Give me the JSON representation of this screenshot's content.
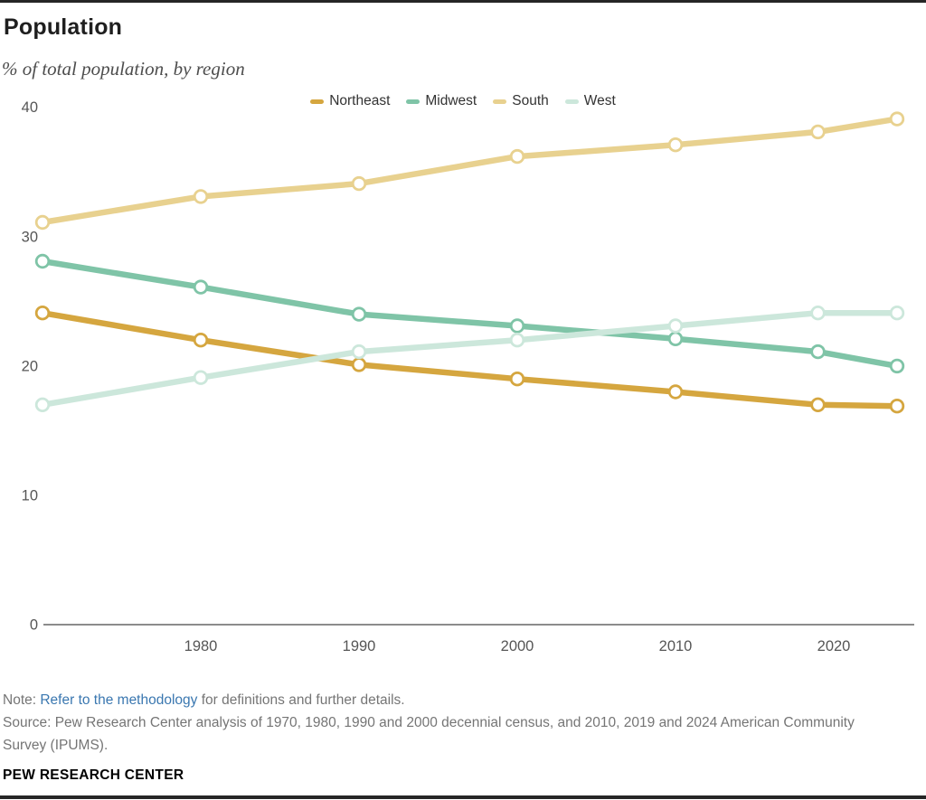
{
  "header": {
    "title": "Population",
    "subtitle": "% of total population, by region"
  },
  "chart_data": {
    "type": "line",
    "x": [
      1970,
      1980,
      1990,
      2000,
      2010,
      2019,
      2024
    ],
    "series": [
      {
        "name": "Northeast",
        "color": "#d5a63f",
        "values": [
          24.1,
          22.0,
          20.1,
          19.0,
          18.0,
          17.0,
          16.9
        ]
      },
      {
        "name": "Midwest",
        "color": "#7fc4a7",
        "values": [
          28.1,
          26.1,
          24.0,
          23.1,
          22.1,
          21.1,
          20.0
        ]
      },
      {
        "name": "South",
        "color": "#e8d18f",
        "values": [
          31.1,
          33.1,
          34.1,
          36.2,
          37.1,
          38.1,
          39.1
        ]
      },
      {
        "name": "West",
        "color": "#cce7db",
        "values": [
          17.0,
          19.1,
          21.1,
          22.0,
          23.1,
          24.1,
          24.1
        ]
      }
    ],
    "draw_order": [
      "South",
      "Northeast",
      "Midwest",
      "West"
    ],
    "y_ticks": [
      0,
      10,
      20,
      30,
      40
    ],
    "x_tick_years": [
      1980,
      1990,
      2000,
      2010,
      2020
    ],
    "ylim": [
      0,
      40
    ],
    "xlim": [
      1970,
      2024
    ],
    "grid": false,
    "legend_position": "top",
    "title": "Population",
    "xlabel": "",
    "ylabel": "% of total population"
  },
  "footer": {
    "note_prefix": "Note: ",
    "note_link": "Refer to the methodology",
    "note_suffix": " for definitions and further details.",
    "source": "Source: Pew Research Center analysis of 1970, 1980, 1990 and 2000 decennial census, and 2010, 2019 and 2024 American Community Survey (IPUMS).",
    "brand": "PEW RESEARCH CENTER"
  },
  "colors": {
    "axis_line": "#8c8c8c",
    "tick_text": "#565656",
    "link": "#3a77b0",
    "note_text": "#757575"
  }
}
